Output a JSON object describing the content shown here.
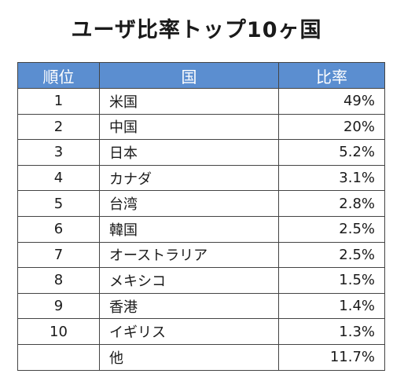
{
  "title": "ユーザ比率トップ10ヶ国",
  "chart_data": {
    "type": "table",
    "title": "ユーザ比率トップ10ヶ国",
    "columns": [
      "順位",
      "国",
      "比率"
    ],
    "rows": [
      {
        "rank": "1",
        "country": "米国",
        "ratio": "49%"
      },
      {
        "rank": "2",
        "country": "中国",
        "ratio": "20%"
      },
      {
        "rank": "3",
        "country": "日本",
        "ratio": "5.2%"
      },
      {
        "rank": "4",
        "country": "カナダ",
        "ratio": "3.1%"
      },
      {
        "rank": "5",
        "country": "台湾",
        "ratio": "2.8%"
      },
      {
        "rank": "6",
        "country": "韓国",
        "ratio": "2.5%"
      },
      {
        "rank": "7",
        "country": "オーストラリア",
        "ratio": "2.5%"
      },
      {
        "rank": "8",
        "country": "メキシコ",
        "ratio": "1.5%"
      },
      {
        "rank": "9",
        "country": "香港",
        "ratio": "1.4%"
      },
      {
        "rank": "10",
        "country": "イギリス",
        "ratio": "1.3%"
      },
      {
        "rank": "",
        "country": "他",
        "ratio": "11.7%"
      }
    ],
    "header_color": "#5b8ed0"
  }
}
